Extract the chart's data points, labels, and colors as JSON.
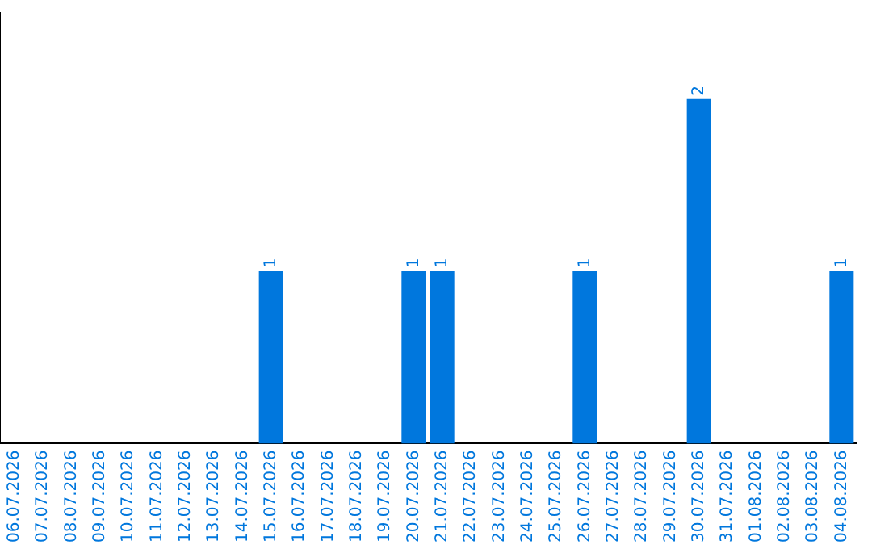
{
  "chart_data": {
    "type": "bar",
    "categories": [
      "06.07.2026",
      "07.07.2026",
      "08.07.2026",
      "09.07.2026",
      "10.07.2026",
      "11.07.2026",
      "12.07.2026",
      "13.07.2026",
      "14.07.2026",
      "15.07.2026",
      "16.07.2026",
      "17.07.2026",
      "18.07.2026",
      "19.07.2026",
      "20.07.2026",
      "21.07.2026",
      "22.07.2026",
      "23.07.2026",
      "24.07.2026",
      "25.07.2026",
      "26.07.2026",
      "27.07.2026",
      "28.07.2026",
      "29.07.2026",
      "30.07.2026",
      "31.07.2026",
      "01.08.2026",
      "02.08.2026",
      "03.08.2026",
      "04.08.2026"
    ],
    "values": [
      0,
      0,
      0,
      0,
      0,
      0,
      0,
      0,
      0,
      1,
      0,
      0,
      0,
      0,
      1,
      1,
      0,
      0,
      0,
      0,
      1,
      0,
      0,
      0,
      2,
      0,
      0,
      0,
      0,
      1
    ],
    "value_labels": [
      null,
      null,
      null,
      null,
      null,
      null,
      null,
      null,
      null,
      "1",
      null,
      null,
      null,
      null,
      "1",
      "1",
      null,
      null,
      null,
      null,
      "1",
      null,
      null,
      null,
      "2",
      null,
      null,
      null,
      null,
      "1"
    ],
    "color": "#0077dd",
    "grid": false,
    "legend": false,
    "tick_labels": "x"
  }
}
